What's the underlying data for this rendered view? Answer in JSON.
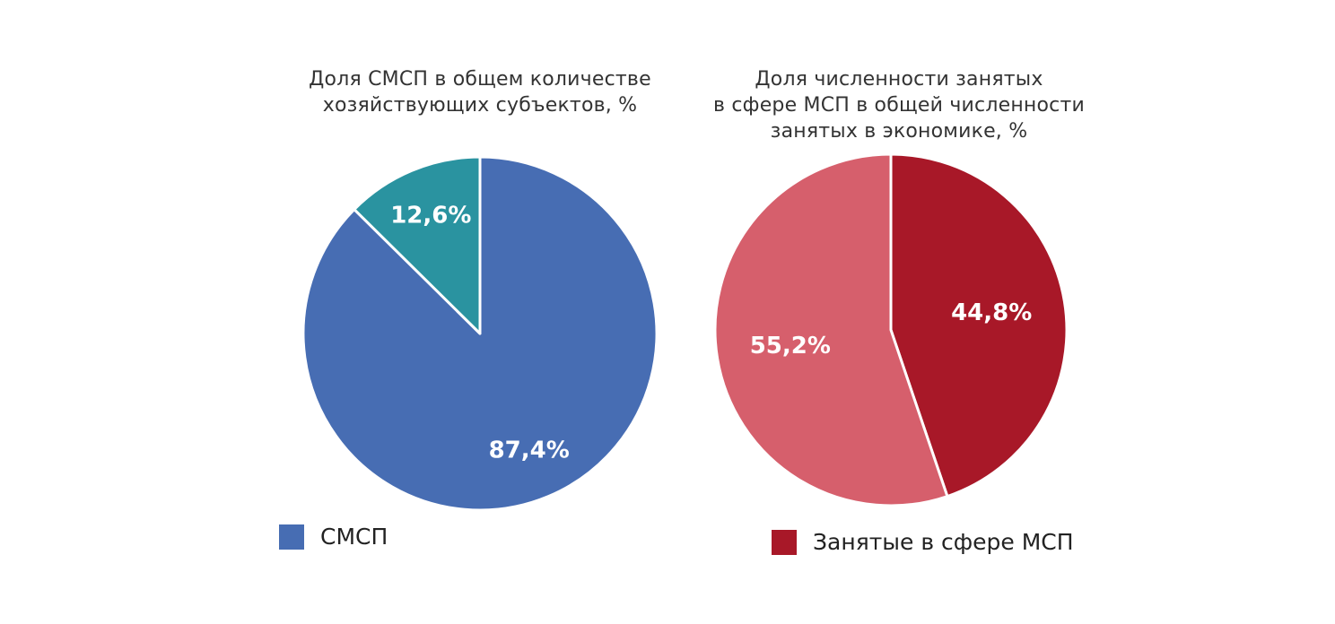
{
  "chart_data": [
    {
      "type": "pie",
      "title": [
        "Доля СМСП в общем количестве",
        "хозяйствующих субъектов, %"
      ],
      "slices": [
        {
          "label": "87,4%",
          "value": 87.4,
          "color": "#476db3"
        },
        {
          "label": "12,6%",
          "value": 12.6,
          "color": "#2a93a0"
        }
      ],
      "legend": [
        {
          "label": "СМСП",
          "color": "#476db3"
        }
      ],
      "legend_position": "bottom-left"
    },
    {
      "type": "pie",
      "title": [
        "Доля численности занятых",
        "в сфере МСП в общей численности",
        "занятых в экономике, %"
      ],
      "slices": [
        {
          "label": "44,8%",
          "value": 44.8,
          "color": "#a81828"
        },
        {
          "label": "55,2%",
          "value": 55.2,
          "color": "#d65f6c"
        }
      ],
      "legend": [
        {
          "label": "Занятые в сфере МСП",
          "color": "#a81828"
        }
      ],
      "legend_position": "bottom-left"
    }
  ]
}
